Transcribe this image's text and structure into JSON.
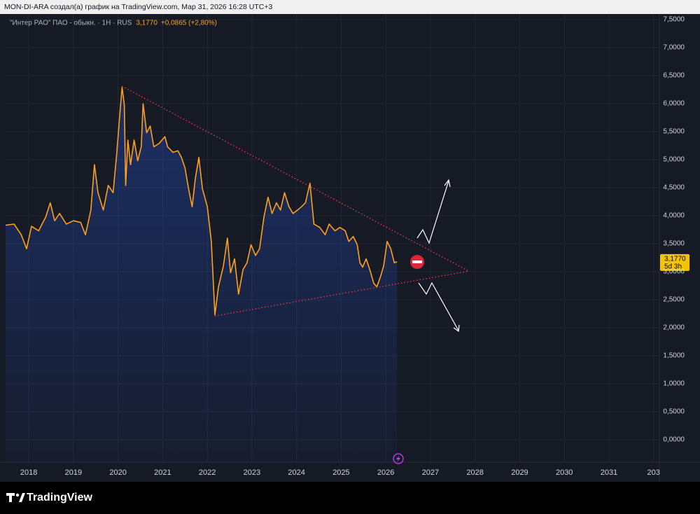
{
  "header": {
    "attribution": "MON-DI-ARA создал(а) график на TradingView.com, Мар 31, 2026 16:28 UTC+3"
  },
  "chart_data": {
    "type": "line",
    "symbol": "\"Интер РАО\" ПАО - обыкн. · 1H · RUS",
    "last": "3,1770",
    "change": "+0,0865 (+2,80%)",
    "price_label": "3,1770",
    "countdown": "5d 3h",
    "color": "#ffa01c",
    "x": [
      2017.48,
      2017.67,
      2017.83,
      2017.95,
      2018.06,
      2018.22,
      2018.38,
      2018.48,
      2018.58,
      2018.69,
      2018.84,
      2019.0,
      2019.16,
      2019.27,
      2019.39,
      2019.47,
      2019.55,
      2019.67,
      2019.78,
      2019.89,
      2019.97,
      2020.05,
      2020.09,
      2020.14,
      2020.17,
      2020.22,
      2020.28,
      2020.36,
      2020.44,
      2020.52,
      2020.56,
      2020.64,
      2020.72,
      2020.8,
      2020.92,
      2021.05,
      2021.11,
      2021.23,
      2021.34,
      2021.42,
      2021.5,
      2021.58,
      2021.66,
      2021.73,
      2021.81,
      2021.89,
      2022.0,
      2022.09,
      2022.17,
      2022.25,
      2022.36,
      2022.45,
      2022.52,
      2022.61,
      2022.7,
      2022.8,
      2022.89,
      2022.98,
      2023.08,
      2023.17,
      2023.27,
      2023.36,
      2023.45,
      2023.55,
      2023.64,
      2023.73,
      2023.83,
      2023.92,
      2024.02,
      2024.11,
      2024.2,
      2024.3,
      2024.39,
      2024.52,
      2024.64,
      2024.73,
      2024.86,
      2024.97,
      2025.09,
      2025.17,
      2025.27,
      2025.36,
      2025.42,
      2025.48,
      2025.56,
      2025.64,
      2025.73,
      2025.8,
      2025.88,
      2025.95,
      2026.03,
      2026.11,
      2026.19,
      2026.25
    ],
    "values": [
      3.83,
      3.85,
      3.66,
      3.41,
      3.81,
      3.73,
      3.98,
      4.23,
      3.91,
      4.04,
      3.85,
      3.91,
      3.88,
      3.66,
      4.1,
      4.91,
      4.41,
      4.1,
      4.54,
      4.41,
      5.1,
      5.91,
      6.29,
      5.98,
      4.54,
      5.35,
      4.91,
      5.35,
      4.98,
      5.23,
      6.0,
      5.48,
      5.6,
      5.23,
      5.29,
      5.41,
      5.23,
      5.13,
      5.16,
      5.04,
      4.85,
      4.48,
      4.16,
      4.66,
      5.04,
      4.48,
      4.16,
      3.54,
      2.23,
      2.73,
      3.1,
      3.6,
      2.98,
      3.23,
      2.6,
      3.04,
      3.16,
      3.48,
      3.29,
      3.41,
      3.98,
      4.33,
      4.04,
      4.23,
      4.1,
      4.41,
      4.16,
      4.04,
      4.1,
      4.16,
      4.23,
      4.58,
      3.85,
      3.79,
      3.66,
      3.85,
      3.73,
      3.79,
      3.73,
      3.54,
      3.63,
      3.48,
      3.16,
      3.08,
      3.23,
      3.04,
      2.79,
      2.73,
      2.91,
      3.1,
      3.54,
      3.41,
      3.16,
      3.177
    ],
    "trendlines": [
      {
        "x": [
          2020.09,
          2027.86
        ],
        "y": [
          6.31,
          3.01
        ],
        "color": "#f23645"
      },
      {
        "x": [
          2022.17,
          2027.86
        ],
        "y": [
          2.21,
          3.01
        ],
        "color": "#f23645"
      }
    ],
    "xlim": [
      2017.48,
      2032.13
    ],
    "ylim": [
      -0.4,
      7.6
    ],
    "xticks": [
      2018,
      2019,
      2020,
      2021,
      2022,
      2023,
      2024,
      2025,
      2026,
      2027,
      2028,
      2029,
      2030,
      2031,
      {
        "value": 2032,
        "label": "203"
      }
    ],
    "yticks": [
      {
        "value": 0,
        "label": "0,0000"
      },
      {
        "value": 0.5,
        "label": "0,5000"
      },
      {
        "value": 1,
        "label": "1,0000"
      },
      {
        "value": 1.5,
        "label": "1,5000"
      },
      {
        "value": 2,
        "label": "2,0000"
      },
      {
        "value": 2.5,
        "label": "2,5000"
      },
      {
        "value": 3,
        "label": "3,0000"
      },
      {
        "value": 3.5,
        "label": "3,5000"
      },
      {
        "value": 4,
        "label": "4,0000"
      },
      {
        "value": 4.5,
        "label": "4,5000"
      },
      {
        "value": 5,
        "label": "5,0000"
      },
      {
        "value": 5.5,
        "label": "5,5000"
      },
      {
        "value": 6,
        "label": "6,0000"
      },
      {
        "value": 6.5,
        "label": "6,5000"
      },
      {
        "value": 7,
        "label": "7,0000"
      },
      {
        "value": 7.5,
        "label": "7,5000"
      }
    ],
    "grid": true
  },
  "footer": {
    "brand": "TradingView"
  }
}
